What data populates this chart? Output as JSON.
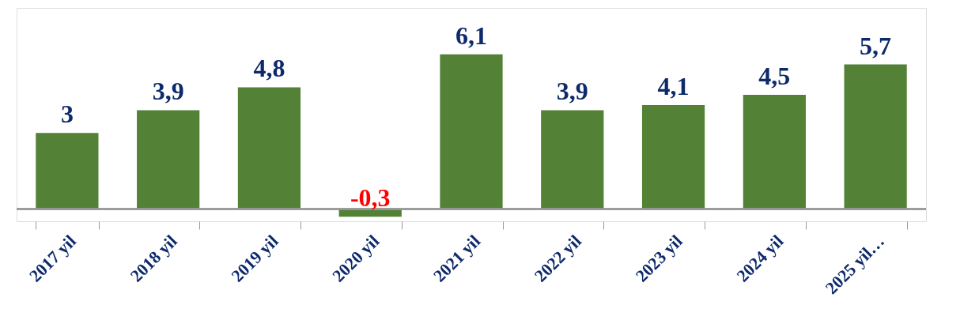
{
  "chart_data": {
    "type": "bar",
    "categories": [
      "2017 yil",
      "2018 yil",
      "2019 yil",
      "2020 yil",
      "2021 yil",
      "2022 yil",
      "2023 yil",
      "2024 yil",
      "2025 yil…"
    ],
    "values": [
      3,
      3.9,
      4.8,
      -0.3,
      6.1,
      3.9,
      4.1,
      4.5,
      5.7
    ],
    "color": "#538135",
    "value_labels": [
      "3",
      "3,9",
      "4,8",
      "-0,3",
      "6,1",
      "3,9",
      "4,1",
      "4,5",
      "5,7"
    ]
  }
}
